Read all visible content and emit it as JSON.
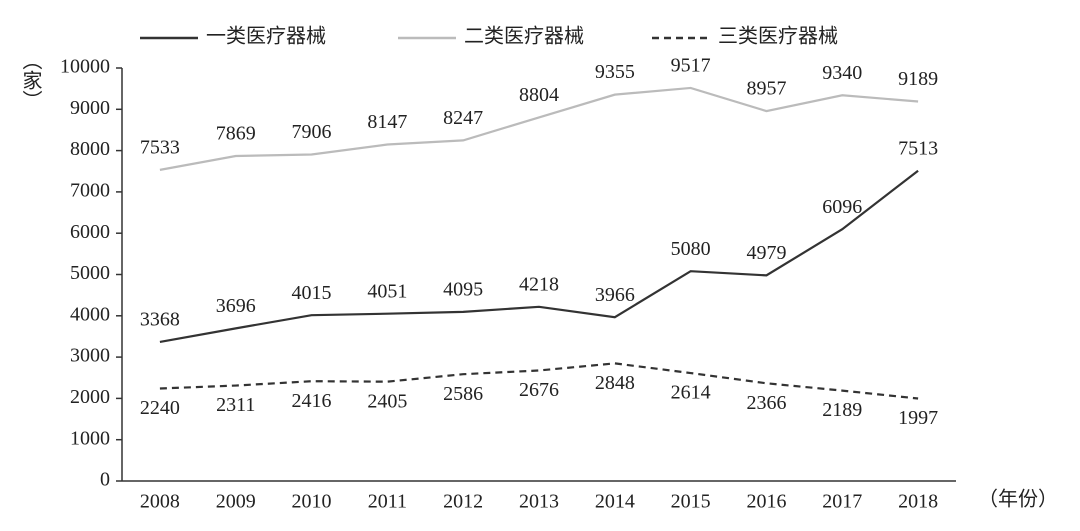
{
  "chart_data": {
    "type": "line",
    "x_label": "（年份）",
    "y_label": "（家）",
    "categories": [
      "2008",
      "2009",
      "2010",
      "2011",
      "2012",
      "2013",
      "2014",
      "2015",
      "2016",
      "2017",
      "2018"
    ],
    "series": [
      {
        "name": "一类医疗器械",
        "color": "#333333",
        "style": "solid",
        "label_position": "above",
        "values": [
          3368,
          3696,
          4015,
          4051,
          4095,
          4218,
          3966,
          5080,
          4979,
          6096,
          7513
        ]
      },
      {
        "name": "二类医疗器械",
        "color": "#bbbbbb",
        "style": "solid",
        "label_position": "above",
        "values": [
          7533,
          7869,
          7906,
          8147,
          8247,
          8804,
          9355,
          9517,
          8957,
          9340,
          9189
        ]
      },
      {
        "name": "三类医疗器械",
        "color": "#333333",
        "style": "dashed",
        "label_position": "below",
        "values": [
          2240,
          2311,
          2416,
          2405,
          2586,
          2676,
          2848,
          2614,
          2366,
          2189,
          1997
        ]
      }
    ],
    "ylim": [
      0,
      10000
    ],
    "yticks": [
      0,
      1000,
      2000,
      3000,
      4000,
      5000,
      6000,
      7000,
      8000,
      9000,
      10000
    ],
    "legend": "top"
  }
}
